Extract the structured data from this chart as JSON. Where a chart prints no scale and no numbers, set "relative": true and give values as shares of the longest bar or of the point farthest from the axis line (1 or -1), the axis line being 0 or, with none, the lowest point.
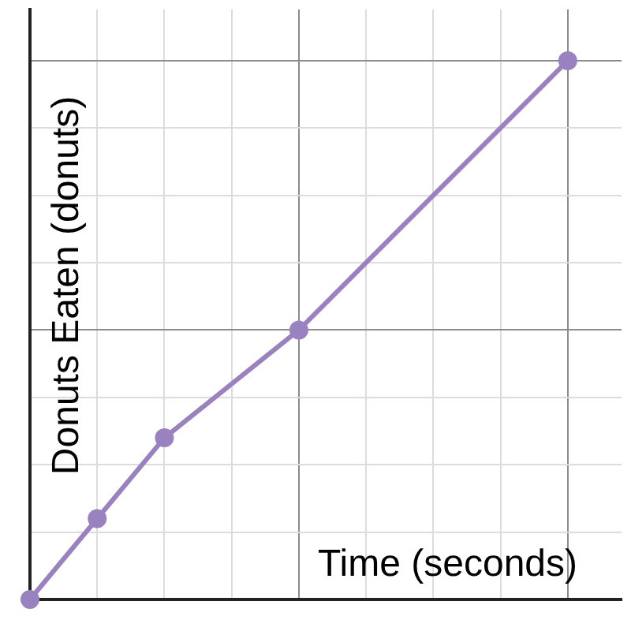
{
  "chart_data": {
    "type": "line",
    "relative": true,
    "xlabel": "Time (seconds)",
    "ylabel": "Donuts Eaten (donuts)",
    "categories": [
      null,
      null,
      null,
      null,
      null,
      null,
      null,
      null,
      null
    ],
    "series": [
      {
        "color": "#9a82c0",
        "values": [
          0,
          0.15,
          0.3,
          null,
          0.5,
          null,
          null,
          null,
          1
        ]
      }
    ],
    "marker": "circle",
    "line_style": "solid",
    "grid": true,
    "tick_labels": false,
    "legend": false
  }
}
